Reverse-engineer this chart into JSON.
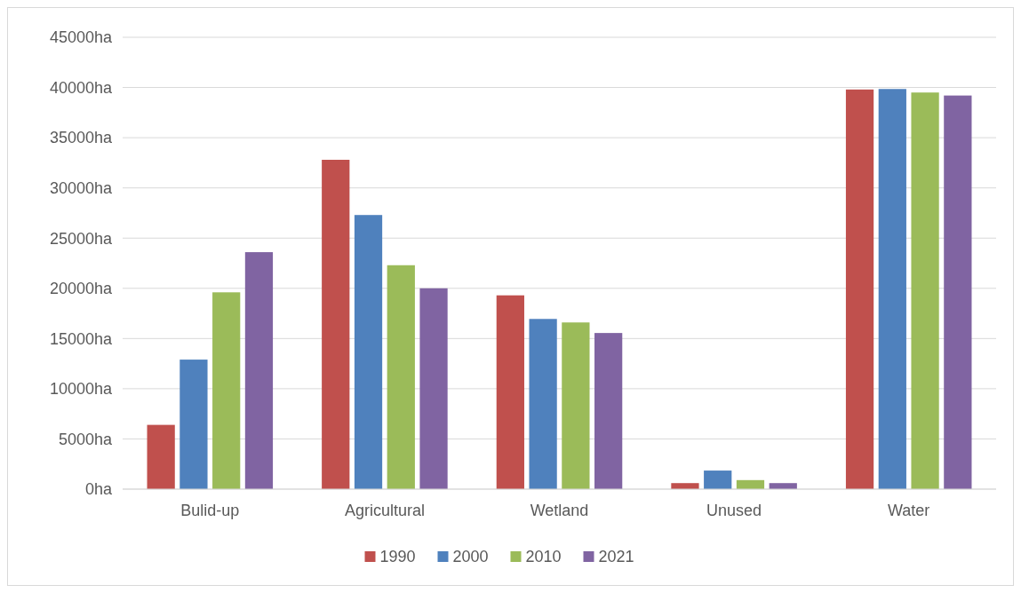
{
  "chart_data": {
    "type": "bar",
    "categories": [
      "Bulid-up",
      "Agricultural",
      "Wetland",
      "Unused",
      "Water"
    ],
    "series": [
      {
        "name": "1990",
        "color": "#c0504d",
        "values": [
          6400,
          32800,
          19300,
          600,
          39800
        ]
      },
      {
        "name": "2000",
        "color": "#4f81bd",
        "values": [
          12900,
          27300,
          16950,
          1850,
          39850
        ]
      },
      {
        "name": "2010",
        "color": "#9bbb59",
        "values": [
          19600,
          22300,
          16600,
          900,
          39500
        ]
      },
      {
        "name": "2021",
        "color": "#8064a2",
        "values": [
          23600,
          20000,
          15550,
          600,
          39200
        ]
      }
    ],
    "ylim": [
      0,
      45000
    ],
    "yticks": [
      {
        "value": 0,
        "label": "0ha"
      },
      {
        "value": 5000,
        "label": "5000ha"
      },
      {
        "value": 10000,
        "label": "10000ha"
      },
      {
        "value": 15000,
        "label": "15000ha"
      },
      {
        "value": 20000,
        "label": "20000ha"
      },
      {
        "value": 25000,
        "label": "25000ha"
      },
      {
        "value": 30000,
        "label": "30000ha"
      },
      {
        "value": 35000,
        "label": "35000ha"
      },
      {
        "value": 40000,
        "label": "40000ha"
      },
      {
        "value": 45000,
        "label": "45000ha"
      }
    ],
    "grid": "y",
    "legend": "bottom"
  }
}
